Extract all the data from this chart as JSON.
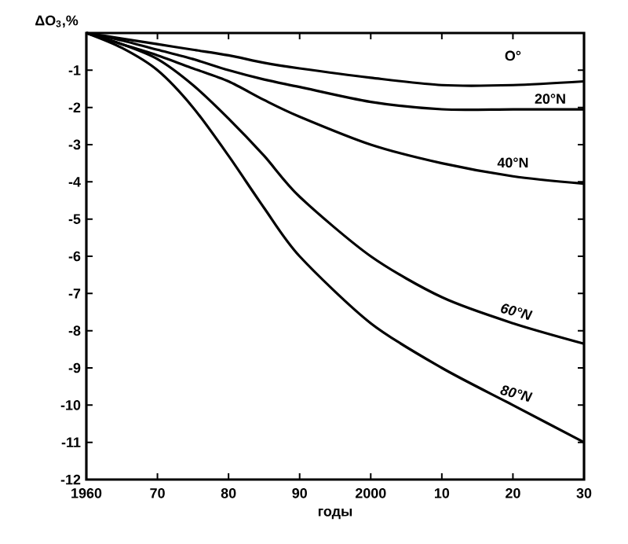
{
  "chart_data": {
    "type": "line",
    "xlabel": "годы",
    "ylabel": "ΔO$_{3}$,%",
    "xlim": [
      1960,
      2030
    ],
    "ylim": [
      -12,
      0
    ],
    "xticks": [
      {
        "value": 1960,
        "label": "1960"
      },
      {
        "value": 1970,
        "label": "70"
      },
      {
        "value": 1980,
        "label": "80"
      },
      {
        "value": 1990,
        "label": "90"
      },
      {
        "value": 2000,
        "label": "2000"
      },
      {
        "value": 2010,
        "label": "10"
      },
      {
        "value": 2020,
        "label": "20"
      },
      {
        "value": 2030,
        "label": "30"
      }
    ],
    "yticks": [
      -1,
      -2,
      -3,
      -4,
      -5,
      -6,
      -7,
      -8,
      -9,
      -10,
      -11,
      -12
    ],
    "x": [
      1960,
      1965,
      1970,
      1975,
      1980,
      1985,
      1990,
      2000,
      2010,
      2020,
      2030
    ],
    "marker": "none",
    "line_style": "solid",
    "grid": false,
    "series": [
      {
        "name": "O°",
        "color": "#000000",
        "values": [
          0,
          -0.15,
          -0.3,
          -0.45,
          -0.6,
          -0.8,
          -0.95,
          -1.2,
          -1.4,
          -1.4,
          -1.3
        ]
      },
      {
        "name": "20°N",
        "color": "#000000",
        "values": [
          0,
          -0.2,
          -0.45,
          -0.7,
          -1.0,
          -1.25,
          -1.45,
          -1.85,
          -2.05,
          -2.05,
          -2.05
        ]
      },
      {
        "name": "40°N",
        "color": "#000000",
        "values": [
          0,
          -0.3,
          -0.6,
          -0.95,
          -1.3,
          -1.8,
          -2.25,
          -3.0,
          -3.5,
          -3.85,
          -4.05
        ]
      },
      {
        "name": "60°N",
        "color": "#000000",
        "values": [
          0,
          -0.3,
          -0.7,
          -1.4,
          -2.3,
          -3.3,
          -4.4,
          -6.0,
          -7.1,
          -7.8,
          -8.35
        ]
      },
      {
        "name": "80°N",
        "color": "#000000",
        "values": [
          0,
          -0.4,
          -1.0,
          -2.0,
          -3.3,
          -4.7,
          -6.0,
          -7.8,
          -9.0,
          -10.0,
          -11.0
        ]
      }
    ]
  }
}
